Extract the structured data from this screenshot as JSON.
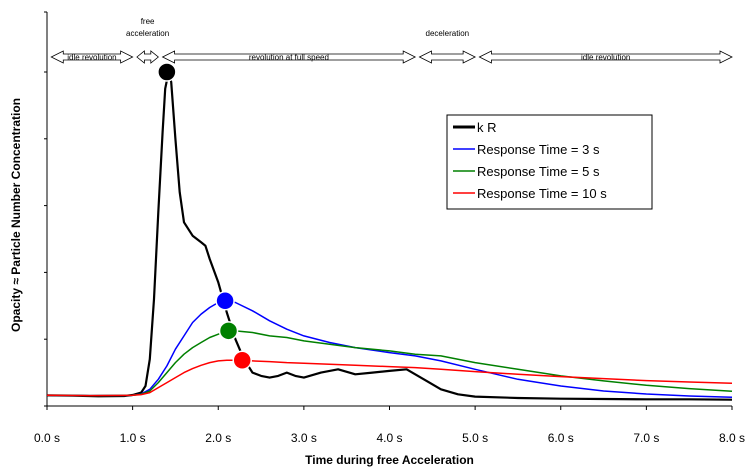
{
  "chart_data": {
    "type": "line",
    "xlabel": "Time during free Acceleration",
    "ylabel": "Opacity ≈ Particle Number Concentration",
    "xlim": [
      0,
      8
    ],
    "ylim": [
      0,
      100
    ],
    "x_ticks": [
      "0.0 s",
      "1.0 s",
      "2.0 s",
      "3.0 s",
      "4.0 s",
      "5.0 s",
      "6.0 s",
      "7.0 s",
      "8.0 s"
    ],
    "y_tick_values": [
      0,
      20,
      40,
      60,
      80,
      100
    ],
    "grid": false,
    "legend_position": "upper-right",
    "phases": [
      {
        "label": "idle revolution",
        "start": 0.05,
        "end": 1.0
      },
      {
        "label": "free acceleration",
        "start": 1.05,
        "end": 1.3
      },
      {
        "label": "revolution at full speed",
        "start": 1.35,
        "end": 4.3
      },
      {
        "label": "deceleration",
        "start": 4.35,
        "end": 5.0
      },
      {
        "label": "idle revolution",
        "start": 5.05,
        "end": 8.0
      }
    ],
    "series": [
      {
        "name": "k R",
        "color": "#000000",
        "x": [
          0,
          0.3,
          0.6,
          0.9,
          1.0,
          1.1,
          1.15,
          1.2,
          1.25,
          1.3,
          1.35,
          1.38,
          1.42,
          1.45,
          1.5,
          1.55,
          1.6,
          1.7,
          1.8,
          1.85,
          1.9,
          2.0,
          2.1,
          2.2,
          2.3,
          2.4,
          2.5,
          2.6,
          2.7,
          2.8,
          2.9,
          3.0,
          3.2,
          3.4,
          3.6,
          3.8,
          4.0,
          4.2,
          4.4,
          4.6,
          4.8,
          5.0,
          5.5,
          6.0,
          6.5,
          7.0,
          7.5,
          8.0
        ],
        "values": [
          3.2,
          3.1,
          2.9,
          3.0,
          3.3,
          4.0,
          6,
          14,
          32,
          58,
          82,
          95,
          100,
          97,
          80,
          64,
          55,
          51,
          49,
          48,
          44,
          37,
          28,
          20,
          14,
          10,
          9,
          8.5,
          9,
          10,
          9,
          8.5,
          10,
          11,
          9.5,
          10,
          10.5,
          11,
          8,
          5,
          3.5,
          2.8,
          2.4,
          2.2,
          2.1,
          2.0,
          2.0,
          1.9
        ]
      },
      {
        "name": "Response Time = 3 s",
        "color": "#0000ff",
        "x": [
          0,
          0.5,
          1.0,
          1.1,
          1.2,
          1.3,
          1.4,
          1.5,
          1.6,
          1.7,
          1.8,
          1.9,
          2.0,
          2.1,
          2.2,
          2.4,
          2.6,
          2.8,
          3.0,
          3.3,
          3.6,
          4.0,
          4.3,
          4.6,
          5.0,
          5.5,
          6.0,
          6.5,
          7.0,
          7.5,
          8.0
        ],
        "values": [
          3.2,
          3.1,
          3.2,
          3.6,
          5,
          8,
          12,
          17,
          21,
          25,
          27.5,
          29.5,
          31,
          31.5,
          31,
          28.5,
          25.5,
          23,
          21,
          19,
          17.5,
          16,
          15,
          13.5,
          11,
          8,
          6,
          4.5,
          3.6,
          3.0,
          2.6
        ]
      },
      {
        "name": "Response Time = 5 s",
        "color": "#008000",
        "x": [
          0,
          0.5,
          1.0,
          1.1,
          1.2,
          1.3,
          1.4,
          1.5,
          1.6,
          1.7,
          1.8,
          1.9,
          2.0,
          2.1,
          2.2,
          2.4,
          2.6,
          2.8,
          3.0,
          3.3,
          3.6,
          4.0,
          4.3,
          4.6,
          5.0,
          5.5,
          6.0,
          6.5,
          7.0,
          7.5,
          8.0
        ],
        "values": [
          3.2,
          3.1,
          3.2,
          3.5,
          4.5,
          7,
          10,
          13,
          15.5,
          17.5,
          19,
          20.5,
          21.5,
          22.5,
          22.5,
          22,
          21,
          20.5,
          19.5,
          18.5,
          17.5,
          16.5,
          15.5,
          15,
          13,
          11,
          9,
          7.5,
          6.2,
          5.2,
          4.4
        ]
      },
      {
        "name": "Response Time = 10 s",
        "color": "#ff0000",
        "x": [
          0,
          0.5,
          1.0,
          1.1,
          1.2,
          1.3,
          1.4,
          1.5,
          1.6,
          1.7,
          1.8,
          1.9,
          2.0,
          2.1,
          2.2,
          2.4,
          2.6,
          2.8,
          3.0,
          3.3,
          3.6,
          4.0,
          4.3,
          4.6,
          5.0,
          5.5,
          6.0,
          6.5,
          7.0,
          7.5,
          8.0
        ],
        "values": [
          3.2,
          3.1,
          3.2,
          3.4,
          4,
          5.5,
          7,
          8.5,
          10,
          11.2,
          12.2,
          13,
          13.5,
          13.7,
          13.7,
          13.5,
          13.3,
          13,
          12.8,
          12.5,
          12.2,
          11.8,
          11.5,
          11,
          10.3,
          9.5,
          8.8,
          8.2,
          7.6,
          7.2,
          6.8
        ]
      }
    ],
    "markers": [
      {
        "series": "k R",
        "x": 1.4,
        "y": 100,
        "color": "#000000"
      },
      {
        "series": "Response Time = 3 s",
        "x": 2.08,
        "y": 31.5,
        "color": "#0000ff"
      },
      {
        "series": "Response Time = 5 s",
        "x": 2.12,
        "y": 22.5,
        "color": "#008000"
      },
      {
        "series": "Response Time = 10 s",
        "x": 2.28,
        "y": 13.7,
        "color": "#ff0000"
      }
    ]
  }
}
